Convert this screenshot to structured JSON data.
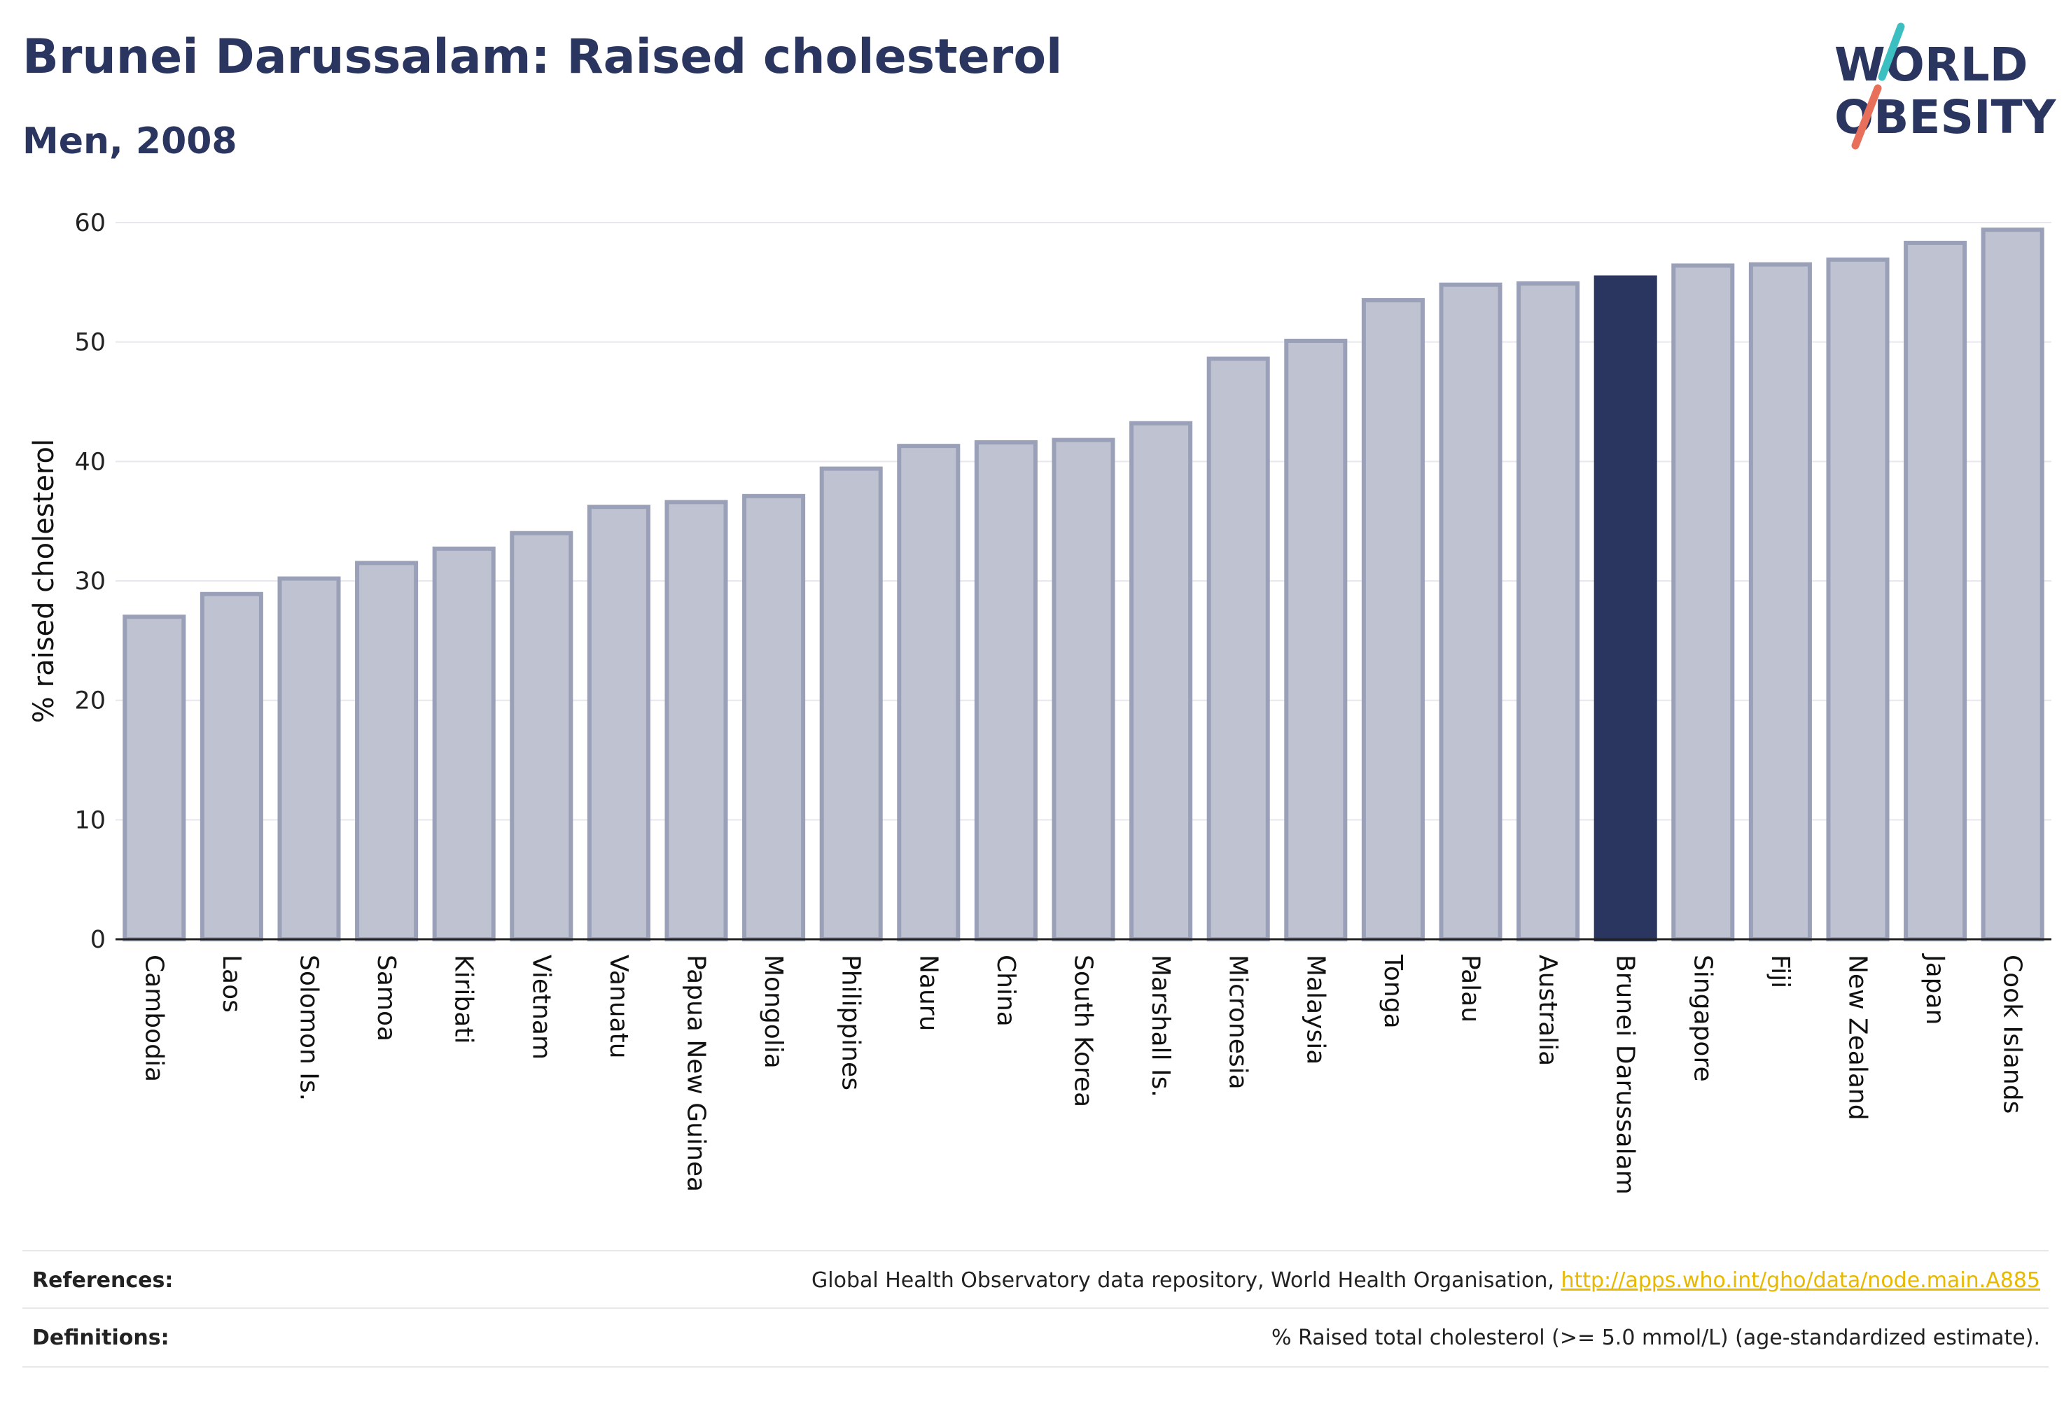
{
  "title": "Brunei Darussalam: Raised cholesterol",
  "subtitle": "Men, 2008",
  "logo": {
    "line1": "WORLD",
    "line2": "OBESITY",
    "accent_teal": "#3bbfc0",
    "accent_coral": "#e8705a"
  },
  "colors": {
    "bar": "#bfc3d1",
    "bar_stroke": "#9aa0b8",
    "highlight": "#2a3560"
  },
  "chart_data": {
    "type": "bar",
    "title": "Brunei Darussalam: Raised cholesterol",
    "subtitle": "Men, 2008",
    "xlabel": "",
    "ylabel": "% raised cholesterol",
    "ylim": [
      0,
      60
    ],
    "yticks": [
      0,
      10,
      20,
      30,
      40,
      50,
      60
    ],
    "grid": true,
    "highlight": "Brunei Darussalam",
    "categories": [
      "Cambodia",
      "Laos",
      "Solomon Is.",
      "Samoa",
      "Kiribati",
      "Vietnam",
      "Vanuatu",
      "Papua New Guinea",
      "Mongolia",
      "Philippines",
      "Nauru",
      "China",
      "South Korea",
      "Marshall Is.",
      "Micronesia",
      "Malaysia",
      "Tonga",
      "Palau",
      "Australia",
      "Brunei Darussalam",
      "Singapore",
      "Fiji",
      "New Zealand",
      "Japan",
      "Cook Islands"
    ],
    "values": [
      27.0,
      28.9,
      30.2,
      31.5,
      32.7,
      34.0,
      36.2,
      36.6,
      37.1,
      39.4,
      41.3,
      41.6,
      41.8,
      43.2,
      48.6,
      50.1,
      53.5,
      54.8,
      54.9,
      55.4,
      56.4,
      56.5,
      56.9,
      58.3,
      59.4
    ]
  },
  "footer": {
    "references_label": "References:",
    "references_text": "Global Health Observatory data repository, World Health Organisation, ",
    "references_link": "http://apps.who.int/gho/data/node.main.A885",
    "definitions_label": "Definitions:",
    "definitions_text": "% Raised total cholesterol (>= 5.0 mmol/L) (age-standardized estimate)."
  }
}
